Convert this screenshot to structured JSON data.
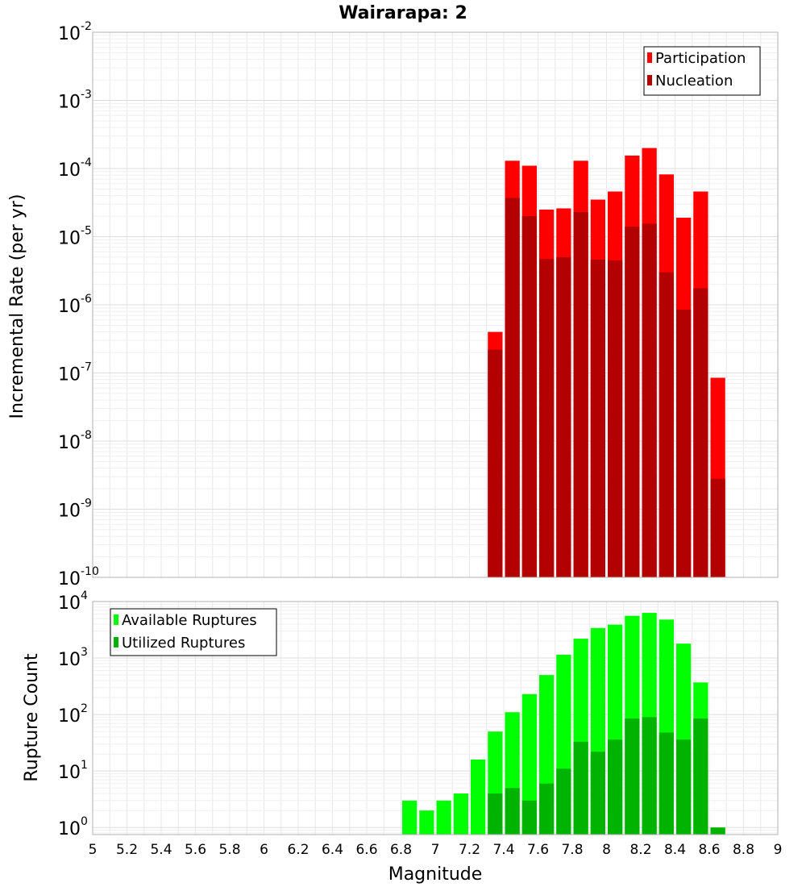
{
  "title": "Wairarapa: 2",
  "chart_data": [
    {
      "type": "bar",
      "ylabel": "Incremental Rate (per yr)",
      "xlabel": "",
      "yscale": "log",
      "ylim": [
        1e-10,
        0.01
      ],
      "xlim": [
        5,
        9
      ],
      "grid": true,
      "legend_position": "top-right",
      "y_tick_labels": [
        {
          "base": "10",
          "exp": "-10"
        },
        {
          "base": "10",
          "exp": "-9"
        },
        {
          "base": "10",
          "exp": "-8"
        },
        {
          "base": "10",
          "exp": "-7"
        },
        {
          "base": "10",
          "exp": "-6"
        },
        {
          "base": "10",
          "exp": "-5"
        },
        {
          "base": "10",
          "exp": "-4"
        },
        {
          "base": "10",
          "exp": "-3"
        },
        {
          "base": "10",
          "exp": "-2"
        }
      ],
      "series": [
        {
          "name": "Participation",
          "color": "#ff0000",
          "points": [
            [
              7.35,
              4e-07
            ],
            [
              7.45,
              0.00013
            ],
            [
              7.55,
              0.00011
            ],
            [
              7.65,
              2.5e-05
            ],
            [
              7.75,
              2.6e-05
            ],
            [
              7.85,
              0.00013
            ],
            [
              7.95,
              3.5e-05
            ],
            [
              8.05,
              4.6e-05
            ],
            [
              8.15,
              0.000155
            ],
            [
              8.25,
              0.0002
            ],
            [
              8.35,
              8.2e-05
            ],
            [
              8.45,
              1.9e-05
            ],
            [
              8.55,
              4.6e-05
            ],
            [
              8.65,
              8.5e-08
            ]
          ]
        },
        {
          "name": "Nucleation",
          "color": "#b30000",
          "points": [
            [
              7.35,
              2.2e-07
            ],
            [
              7.45,
              3.7e-05
            ],
            [
              7.55,
              2e-05
            ],
            [
              7.65,
              4.7e-06
            ],
            [
              7.75,
              5e-06
            ],
            [
              7.85,
              2.3e-05
            ],
            [
              7.95,
              4.6e-06
            ],
            [
              8.05,
              4.5e-06
            ],
            [
              8.15,
              1.4e-05
            ],
            [
              8.25,
              1.55e-05
            ],
            [
              8.35,
              3e-06
            ],
            [
              8.45,
              8.5e-07
            ],
            [
              8.55,
              1.75e-06
            ],
            [
              8.65,
              2.8e-09
            ]
          ]
        }
      ]
    },
    {
      "type": "bar",
      "ylabel": "Rupture Count",
      "xlabel": "Magnitude",
      "yscale": "log",
      "ylim": [
        0.75,
        10000
      ],
      "xlim": [
        5,
        9
      ],
      "grid": true,
      "legend_position": "top-left",
      "x_tick_labels": [
        "5",
        "5.2",
        "5.4",
        "5.6",
        "5.8",
        "6",
        "6.2",
        "6.4",
        "6.6",
        "6.8",
        "7",
        "7.2",
        "7.4",
        "7.6",
        "7.8",
        "8",
        "8.2",
        "8.4",
        "8.6",
        "8.8",
        "9"
      ],
      "y_tick_labels": [
        {
          "base": "10",
          "exp": "0"
        },
        {
          "base": "10",
          "exp": "1"
        },
        {
          "base": "10",
          "exp": "2"
        },
        {
          "base": "10",
          "exp": "3"
        },
        {
          "base": "10",
          "exp": "4"
        }
      ],
      "series": [
        {
          "name": "Available Ruptures",
          "color": "#00ff00",
          "points": [
            [
              6.85,
              3
            ],
            [
              6.95,
              2
            ],
            [
              7.05,
              3
            ],
            [
              7.15,
              4
            ],
            [
              7.25,
              16
            ],
            [
              7.35,
              50
            ],
            [
              7.45,
              110
            ],
            [
              7.55,
              230
            ],
            [
              7.65,
              500
            ],
            [
              7.75,
              1150
            ],
            [
              7.85,
              2200
            ],
            [
              7.95,
              3400
            ],
            [
              8.05,
              3900
            ],
            [
              8.15,
              5600
            ],
            [
              8.25,
              6300
            ],
            [
              8.35,
              4800
            ],
            [
              8.45,
              1800
            ],
            [
              8.55,
              370
            ],
            [
              8.65,
              1
            ]
          ]
        },
        {
          "name": "Utilized Ruptures",
          "color": "#00b300",
          "points": [
            [
              7.35,
              4
            ],
            [
              7.45,
              5
            ],
            [
              7.55,
              3
            ],
            [
              7.65,
              6
            ],
            [
              7.75,
              11
            ],
            [
              7.85,
              33
            ],
            [
              7.95,
              22
            ],
            [
              8.05,
              36
            ],
            [
              8.15,
              85
            ],
            [
              8.25,
              90
            ],
            [
              8.35,
              48
            ],
            [
              8.45,
              36
            ],
            [
              8.55,
              85
            ],
            [
              8.65,
              1
            ]
          ]
        }
      ]
    }
  ]
}
